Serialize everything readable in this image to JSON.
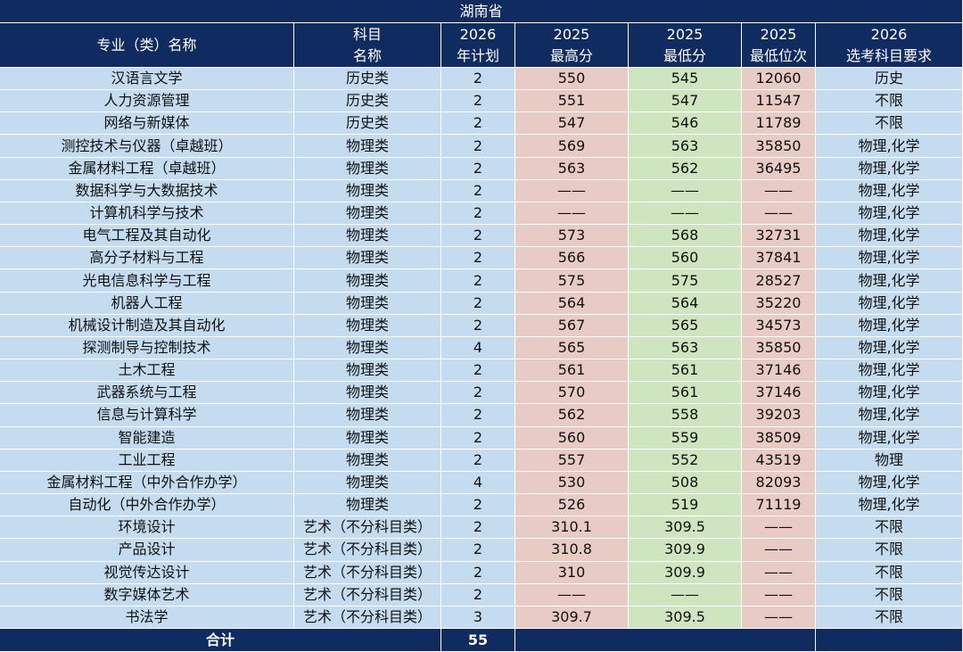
{
  "title": "湖南省",
  "table": {
    "header": [
      [
        "专业（类）名称"
      ],
      [
        "科目",
        "名称"
      ],
      [
        "2026",
        "年计划"
      ],
      [
        "2025",
        "最高分"
      ],
      [
        "2025",
        "最低分"
      ],
      [
        "2025",
        "最低位次"
      ],
      [
        "2026",
        "选考科目要求"
      ]
    ],
    "rows": [
      [
        "汉语言文学",
        "历史类",
        "2",
        "550",
        "545",
        "12060",
        "历史"
      ],
      [
        "人力资源管理",
        "历史类",
        "2",
        "551",
        "547",
        "11547",
        "不限"
      ],
      [
        "网络与新媒体",
        "历史类",
        "2",
        "547",
        "546",
        "11789",
        "不限"
      ],
      [
        "测控技术与仪器（卓越班）",
        "物理类",
        "2",
        "569",
        "563",
        "35850",
        "物理,化学"
      ],
      [
        "金属材料工程（卓越班）",
        "物理类",
        "2",
        "563",
        "562",
        "36495",
        "物理,化学"
      ],
      [
        "数据科学与大数据技术",
        "物理类",
        "2",
        "——",
        "——",
        "——",
        "物理,化学"
      ],
      [
        "计算机科学与技术",
        "物理类",
        "2",
        "——",
        "——",
        "——",
        "物理,化学"
      ],
      [
        "电气工程及其自动化",
        "物理类",
        "2",
        "573",
        "568",
        "32731",
        "物理,化学"
      ],
      [
        "高分子材料与工程",
        "物理类",
        "2",
        "566",
        "560",
        "37841",
        "物理,化学"
      ],
      [
        "光电信息科学与工程",
        "物理类",
        "2",
        "575",
        "575",
        "28527",
        "物理,化学"
      ],
      [
        "机器人工程",
        "物理类",
        "2",
        "564",
        "564",
        "35220",
        "物理,化学"
      ],
      [
        "机械设计制造及其自动化",
        "物理类",
        "2",
        "567",
        "565",
        "34573",
        "物理,化学"
      ],
      [
        "探测制导与控制技术",
        "物理类",
        "4",
        "565",
        "563",
        "35850",
        "物理,化学"
      ],
      [
        "土木工程",
        "物理类",
        "2",
        "561",
        "561",
        "37146",
        "物理,化学"
      ],
      [
        "武器系统与工程",
        "物理类",
        "2",
        "570",
        "561",
        "37146",
        "物理,化学"
      ],
      [
        "信息与计算科学",
        "物理类",
        "2",
        "562",
        "558",
        "39203",
        "物理,化学"
      ],
      [
        "智能建造",
        "物理类",
        "2",
        "560",
        "559",
        "38509",
        "物理,化学"
      ],
      [
        "工业工程",
        "物理类",
        "2",
        "557",
        "552",
        "43519",
        "物理"
      ],
      [
        "金属材料工程（中外合作办学）",
        "物理类",
        "4",
        "530",
        "508",
        "82093",
        "物理,化学"
      ],
      [
        "自动化（中外合作办学）",
        "物理类",
        "2",
        "526",
        "519",
        "71119",
        "物理,化学"
      ],
      [
        "环境设计",
        "艺术（不分科目类）",
        "2",
        "310.1",
        "309.5",
        "——",
        "不限"
      ],
      [
        "产品设计",
        "艺术（不分科目类）",
        "2",
        "310.8",
        "309.9",
        "——",
        "不限"
      ],
      [
        "视觉传达设计",
        "艺术（不分科目类）",
        "2",
        "310",
        "309.9",
        "——",
        "不限"
      ],
      [
        "数字媒体艺术",
        "艺术（不分科目类）",
        "2",
        "——",
        "——",
        "——",
        "不限"
      ],
      [
        "书法学",
        "艺术（不分科目类）",
        "3",
        "309.7",
        "309.5",
        "——",
        "不限"
      ]
    ],
    "footer": {
      "label": "合计",
      "total": "55"
    }
  }
}
